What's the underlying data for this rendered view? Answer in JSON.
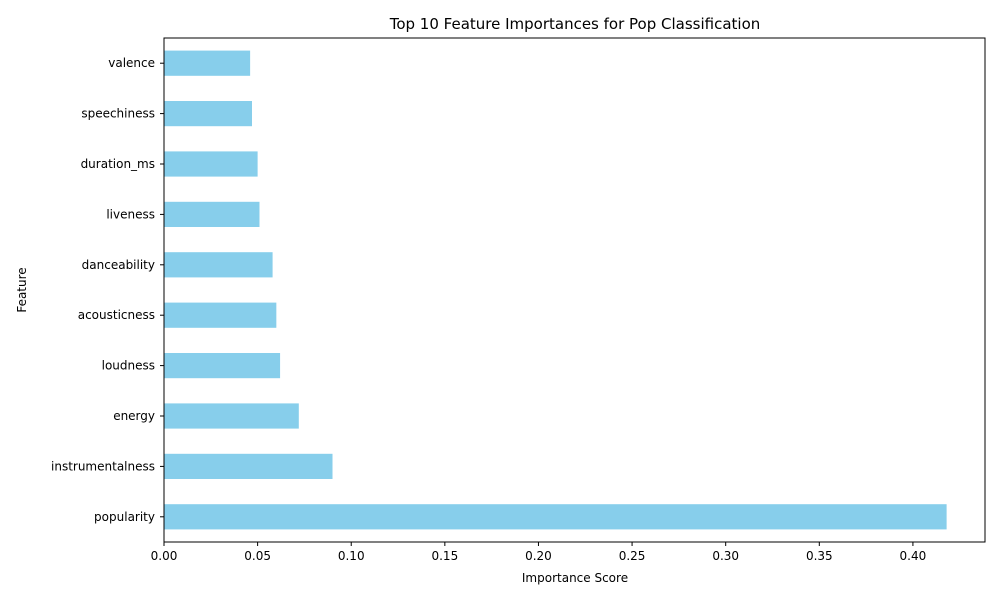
{
  "chart_data": {
    "type": "bar",
    "orientation": "horizontal",
    "title": "Top 10 Feature Importances for Pop Classification",
    "xlabel": "Importance Score",
    "ylabel": "Feature",
    "xlim": [
      0,
      0.4385
    ],
    "xticks": [
      "0.00",
      "0.05",
      "0.10",
      "0.15",
      "0.20",
      "0.25",
      "0.30",
      "0.35",
      "0.40"
    ],
    "categories": [
      "popularity",
      "instrumentalness",
      "energy",
      "loudness",
      "acousticness",
      "danceability",
      "liveness",
      "duration_ms",
      "speechiness",
      "valence"
    ],
    "values": [
      0.418,
      0.09,
      0.072,
      0.062,
      0.06,
      0.058,
      0.051,
      0.05,
      0.047,
      0.046
    ],
    "bar_color": "#87CEEB",
    "grid": false,
    "legend": "none"
  }
}
